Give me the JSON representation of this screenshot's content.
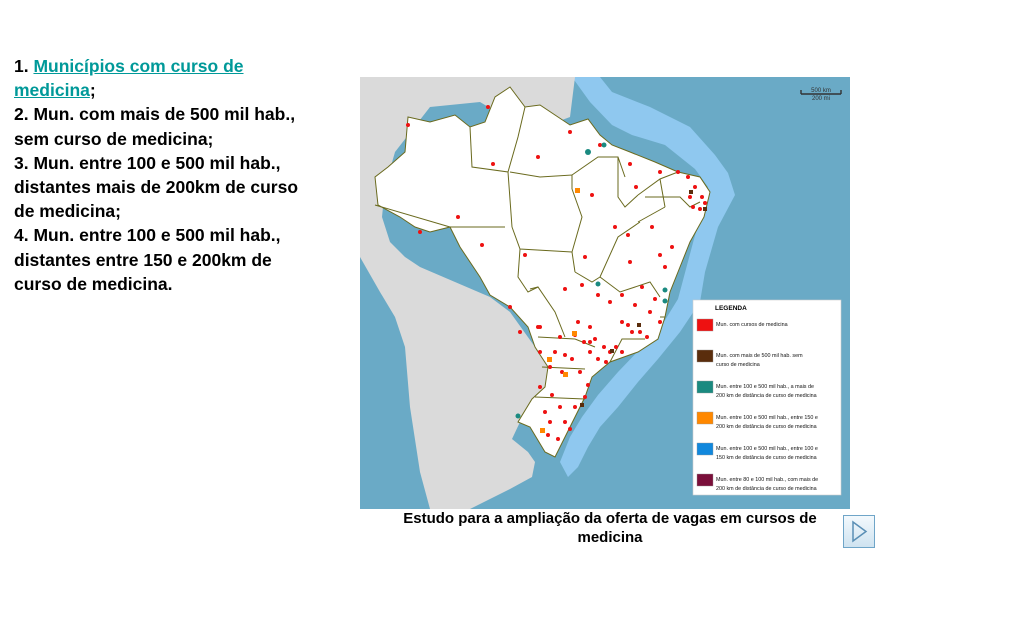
{
  "items": [
    {
      "num": "1. ",
      "link": "Municípios com curso de medicina",
      "rest": ";"
    },
    {
      "num": "2. ",
      "text": "Mun. com mais de 500 mil hab., sem curso de medicina;"
    },
    {
      "num": "3. ",
      "text": "Mun. entre 100 e 500 mil hab., distantes mais de 200km de curso de medicina;"
    },
    {
      "num": "4. ",
      "text": "Mun. entre 100 e 500 mil hab., distantes entre 150 e 200km de curso de medicina."
    }
  ],
  "map": {
    "scale": {
      "km": "500 km",
      "mi": "200 mi"
    },
    "legend": {
      "title": "LEGENDA",
      "items": [
        {
          "color": "#ee1111",
          "label": [
            "Mun. com cursos de medicina"
          ]
        },
        {
          "color": "#5a2d0c",
          "label": [
            "Mun. com mais de 500 mil hab. sem",
            "curso de medicina"
          ]
        },
        {
          "color": "#1a8a80",
          "label": [
            "Mun. entre 100 e 500 mil hab., a mais de",
            "200 km de distância de curso de medicina"
          ]
        },
        {
          "color": "#ff8800",
          "label": [
            "Mun. entre 100 e 500 mil hab., entre 150 e",
            "200 km de distância de curso de medicina"
          ]
        },
        {
          "color": "#1188dd",
          "label": [
            "Mun. entre 100 e 500 mil hab., entre 100 e",
            "150 km de distância de curso de medicina"
          ]
        },
        {
          "color": "#7a0f3a",
          "label": [
            "Mun. entre 80 e 100 mil hab., com mais de",
            "200 km de distância de curso de medicina"
          ]
        }
      ]
    },
    "colors": {
      "ocean": "#6aaac6",
      "coastal": "#8fc8ef",
      "neighbors": "#dadada",
      "brazil": "#ffffff",
      "border": "#6a6a1e"
    }
  },
  "caption": "Estudo para a ampliação da oferta de vagas em cursos de medicina",
  "nav": {
    "next_icon": "next-arrow-icon"
  }
}
